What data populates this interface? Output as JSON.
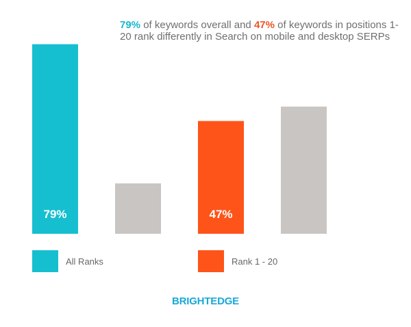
{
  "headline": {
    "part1": "79%",
    "part2": " of keywords overall and ",
    "part3": "47%",
    "part4": " of keywords in positions 1-20 rank differently in Search on mobile and desktop SERPs"
  },
  "chart_data": {
    "type": "bar",
    "ylim": [
      0,
      100
    ],
    "groups": [
      {
        "name": "All Ranks",
        "values": [
          79,
          21
        ],
        "colors": [
          "#16bfd0",
          "#c9c5c2"
        ],
        "labels": [
          "79%",
          ""
        ]
      },
      {
        "name": "Rank 1 - 20",
        "values": [
          47,
          53
        ],
        "colors": [
          "#fe5419",
          "#c9c5c2"
        ],
        "labels": [
          "47%",
          ""
        ]
      }
    ],
    "legend": [
      {
        "label": "All Ranks",
        "color": "#16bfd0"
      },
      {
        "label": "Rank 1 - 20",
        "color": "#fe5419"
      }
    ],
    "grid": false
  },
  "brand": "BRIGHTEDGE"
}
